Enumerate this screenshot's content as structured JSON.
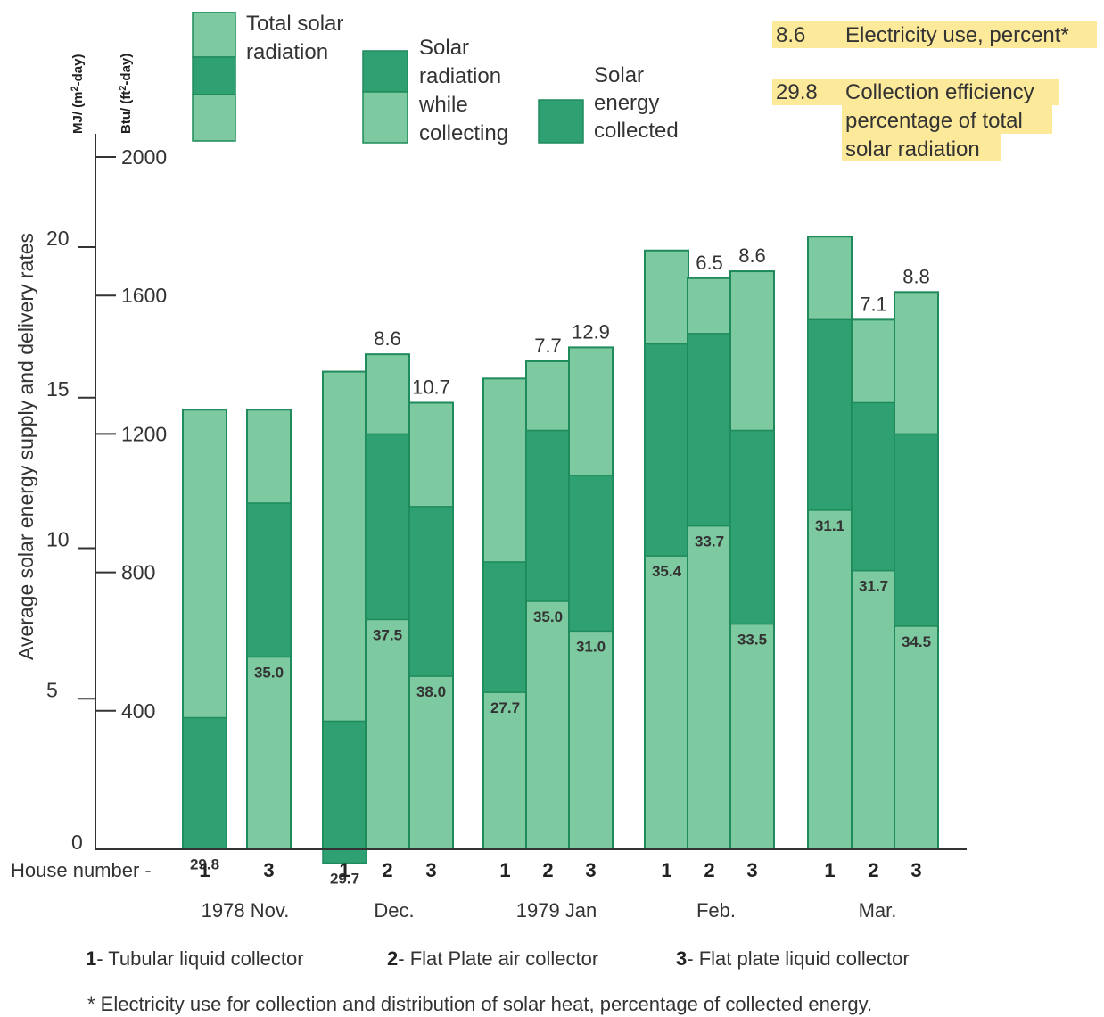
{
  "chart_data": {
    "type": "bar",
    "ylabel": "Average solar energy supply and delivery rates",
    "units": {
      "left": "MJ/ (m",
      "left_sup": "2",
      "left_tail": "-day)",
      "right": "Btu/ (ft",
      "right_sup": "2",
      "right_tail": "-day)"
    },
    "ylim_mj": [
      0,
      22.6
    ],
    "ylim_btu": [
      0,
      2000
    ],
    "y_ticks_mj": [
      "0",
      "5",
      "10",
      "15",
      "20"
    ],
    "y_ticks_btu": [
      "400",
      "800",
      "1200",
      "1600",
      "2000"
    ],
    "house_label": "House number -",
    "colors": {
      "light": "#7dc9a0",
      "dark": "#2fa072",
      "edge": "#1f8a5c",
      "highlight": "#fde99a"
    },
    "legend": {
      "total": [
        "Total solar",
        "radiation"
      ],
      "while": [
        "Solar",
        "radiation",
        "while",
        "collecting"
      ],
      "collected": [
        "Solar",
        "energy",
        "collected"
      ]
    },
    "key": [
      {
        "value": "8.6",
        "text": [
          "Electricity use, percent*"
        ]
      },
      {
        "value": "29.8",
        "text": [
          "Collection efficiency",
          "percentage of total",
          "solar radiation"
        ]
      }
    ],
    "groups": [
      {
        "month": "1978 Nov.",
        "bars": [
          {
            "house": "1",
            "total": 1270,
            "collected": 380,
            "efficiency": "29.8"
          },
          {
            "house": "3",
            "total": 1270,
            "collected": 1000,
            "efficiency": "35.0"
          }
        ]
      },
      {
        "month": "Dec.",
        "bars": [
          {
            "house": "1",
            "total": 1380,
            "collected": 370,
            "efficiency": "29.7"
          },
          {
            "house": "2",
            "total": 1430,
            "collected": 1200,
            "efficiency": "37.5",
            "electricity": "8.6"
          },
          {
            "house": "3",
            "total": 1290,
            "collected": 990,
            "efficiency": "38.0",
            "electricity": "10.7"
          }
        ]
      },
      {
        "month": "1979 Jan",
        "bars": [
          {
            "house": "1",
            "total": 1360,
            "collected": 830,
            "efficiency": "27.7"
          },
          {
            "house": "2",
            "total": 1410,
            "collected": 1210,
            "efficiency": "35.0",
            "electricity": "7.7"
          },
          {
            "house": "3",
            "total": 1450,
            "collected": 1080,
            "efficiency": "31.0",
            "electricity": "12.9"
          }
        ]
      },
      {
        "month": "Feb.",
        "bars": [
          {
            "house": "1",
            "total": 1730,
            "collected": 1460,
            "efficiency": "35.4"
          },
          {
            "house": "2",
            "total": 1650,
            "collected": 1490,
            "efficiency": "33.7",
            "electricity": "6.5"
          },
          {
            "house": "3",
            "total": 1670,
            "collected": 1210,
            "efficiency": "33.5",
            "electricity": "8.6"
          }
        ]
      },
      {
        "month": "Mar.",
        "bars": [
          {
            "house": "1",
            "total": 1770,
            "collected": 1530,
            "efficiency": "31.1"
          },
          {
            "house": "2",
            "total": 1530,
            "collected": 1290,
            "efficiency": "31.7",
            "electricity": "7.1"
          },
          {
            "house": "3",
            "total": 1610,
            "collected": 1200,
            "efficiency": "34.5",
            "electricity": "8.8"
          }
        ]
      }
    ],
    "house_key": [
      {
        "num": "1",
        "text": "- Tubular liquid collector"
      },
      {
        "num": "2",
        "text": "- Flat Plate air collector"
      },
      {
        "num": "3",
        "text": "- Flat plate liquid collector"
      }
    ],
    "footnote": "* Electricity use for collection and distribution of solar heat, percentage of collected energy."
  }
}
